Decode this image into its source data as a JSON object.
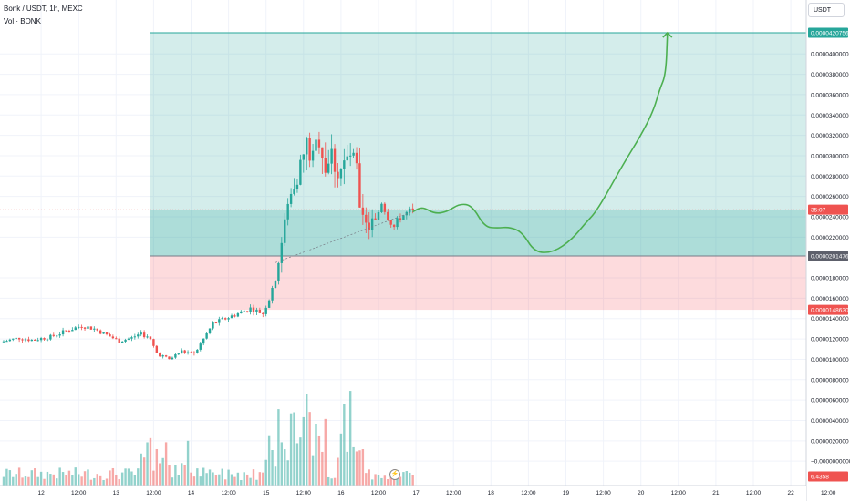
{
  "header": {
    "symbol": "Bonk / USDT, 1h, MEXC",
    "volume_label": "Vol · BONK"
  },
  "currency_button": "USDT",
  "colors": {
    "up": "#26a69a",
    "down": "#ef5350",
    "target_zone": "#26a69a",
    "stop_zone": "#f23645",
    "projection": "#4caf50",
    "grid": "#f0f3fa"
  },
  "chart_data": {
    "type": "candlestick",
    "y_axis": {
      "ylim": [
        -2.4e-06,
        4.53e-05
      ],
      "ticks": [
        {
          "value": 4e-05,
          "label": "0.0000400000"
        },
        {
          "value": 3.8e-05,
          "label": "0.0000380000"
        },
        {
          "value": 3.6e-05,
          "label": "0.0000360000"
        },
        {
          "value": 3.4e-05,
          "label": "0.0000340000"
        },
        {
          "value": 3.2e-05,
          "label": "0.0000320000"
        },
        {
          "value": 3e-05,
          "label": "0.0000300000"
        },
        {
          "value": 2.8e-05,
          "label": "0.0000280000"
        },
        {
          "value": 2.6e-05,
          "label": "0.0000260000"
        },
        {
          "value": 2.4e-05,
          "label": "0.0000240000"
        },
        {
          "value": 2.2e-05,
          "label": "0.0000220000"
        },
        {
          "value": 1.8e-05,
          "label": "0.0000180000"
        },
        {
          "value": 1.6e-05,
          "label": "0.0000160000"
        },
        {
          "value": 1.4e-05,
          "label": "0.0000140000"
        },
        {
          "value": 1.2e-05,
          "label": "0.0000120000"
        },
        {
          "value": 1e-05,
          "label": "0.0000100000"
        },
        {
          "value": 8e-06,
          "label": "0.0000080000"
        },
        {
          "value": 6e-06,
          "label": "0.0000060000"
        },
        {
          "value": 4e-06,
          "label": "0.0000040000"
        },
        {
          "value": 2e-06,
          "label": "0.0000020000"
        },
        {
          "value": 0,
          "label": "−0.0000000000"
        }
      ]
    },
    "x_axis": {
      "ticks": [
        {
          "hour": 12,
          "label": "12"
        },
        {
          "hour": 24,
          "label": "12:00"
        },
        {
          "hour": 36,
          "label": "13"
        },
        {
          "hour": 48,
          "label": "12:00"
        },
        {
          "hour": 60,
          "label": "14"
        },
        {
          "hour": 72,
          "label": "12:00"
        },
        {
          "hour": 84,
          "label": "15"
        },
        {
          "hour": 96,
          "label": "12:00"
        },
        {
          "hour": 108,
          "label": "16"
        },
        {
          "hour": 120,
          "label": "12:00"
        },
        {
          "hour": 132,
          "label": "17"
        },
        {
          "hour": 144,
          "label": "12:00"
        },
        {
          "hour": 156,
          "label": "18"
        },
        {
          "hour": 168,
          "label": "12:00"
        },
        {
          "hour": 180,
          "label": "19"
        },
        {
          "hour": 192,
          "label": "12:00"
        },
        {
          "hour": 204,
          "label": "20"
        },
        {
          "hour": 216,
          "label": "12:00"
        },
        {
          "hour": 228,
          "label": "21"
        },
        {
          "hour": 240,
          "label": "12:00"
        },
        {
          "hour": 252,
          "label": "22"
        },
        {
          "hour": 264,
          "label": "12:00"
        }
      ]
    },
    "price_anchors": [
      [
        0,
        1.17e-05
      ],
      [
        6,
        1.21e-05
      ],
      [
        10,
        1.19e-05
      ],
      [
        16,
        1.22e-05
      ],
      [
        22,
        1.29e-05
      ],
      [
        26,
        1.33e-05
      ],
      [
        30,
        1.3e-05
      ],
      [
        34,
        1.24e-05
      ],
      [
        38,
        1.18e-05
      ],
      [
        42,
        1.21e-05
      ],
      [
        45,
        1.26e-05
      ],
      [
        48,
        1.19e-05
      ],
      [
        50,
        1.06e-05
      ],
      [
        54,
        1e-05
      ],
      [
        58,
        1.08e-05
      ],
      [
        62,
        1.05e-05
      ],
      [
        65,
        1.2e-05
      ],
      [
        68,
        1.35e-05
      ],
      [
        72,
        1.4e-05
      ],
      [
        76,
        1.45e-05
      ],
      [
        80,
        1.5e-05
      ],
      [
        84,
        1.45e-05
      ],
      [
        86,
        1.6e-05
      ],
      [
        88,
        1.8e-05
      ],
      [
        90,
        2.15e-05
      ],
      [
        92,
        2.5e-05
      ],
      [
        94,
        2.75e-05
      ],
      [
        96,
        2.9e-05
      ],
      [
        98,
        3.1e-05
      ],
      [
        100,
        2.95e-05
      ],
      [
        102,
        3.2e-05
      ],
      [
        104,
        2.9e-05
      ],
      [
        106,
        3e-05
      ],
      [
        108,
        2.85e-05
      ],
      [
        110,
        2.9e-05
      ],
      [
        112,
        3e-05
      ],
      [
        114,
        2.85e-05
      ],
      [
        115,
        2.4e-05
      ],
      [
        117,
        2.3e-05
      ],
      [
        120,
        2.35e-05
      ],
      [
        122,
        2.55e-05
      ],
      [
        124,
        2.4e-05
      ],
      [
        126,
        2.3e-05
      ],
      [
        128,
        2.4e-05
      ],
      [
        131,
        2.45e-05
      ]
    ],
    "position": {
      "target": {
        "price": 4.20756e-05,
        "label": "0.0000420756"
      },
      "entry": {
        "price": 2.01476e-05,
        "label": "0.0000201476"
      },
      "stop": {
        "price": 1.4863e-05,
        "label": "0.0000148630"
      },
      "start_hour": 47,
      "end_hour": 270
    },
    "current_price": {
      "price": 2.47e-05,
      "label": "35:07"
    },
    "volume_last": {
      "label": "6.4358"
    },
    "projection_path": [
      [
        131,
        2.45e-05
      ],
      [
        134,
        2.5e-05
      ],
      [
        138,
        2.43e-05
      ],
      [
        142,
        2.45e-05
      ],
      [
        146,
        2.53e-05
      ],
      [
        150,
        2.51e-05
      ],
      [
        154,
        2.3e-05
      ],
      [
        158,
        2.29e-05
      ],
      [
        162,
        2.3e-05
      ],
      [
        166,
        2.25e-05
      ],
      [
        170,
        2.05e-05
      ],
      [
        176,
        2.05e-05
      ],
      [
        182,
        2.18e-05
      ],
      [
        186,
        2.33e-05
      ],
      [
        190,
        2.46e-05
      ],
      [
        198,
        2.9e-05
      ],
      [
        204,
        3.2e-05
      ],
      [
        208,
        3.44e-05
      ],
      [
        210,
        3.65e-05
      ],
      [
        212,
        3.8e-05
      ],
      [
        212.5,
        4.20756e-05
      ]
    ]
  }
}
